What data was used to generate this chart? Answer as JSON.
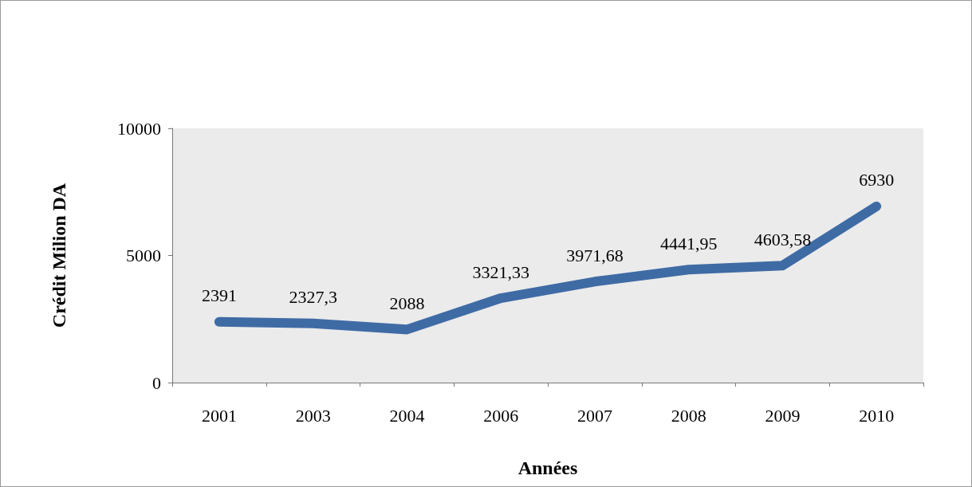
{
  "chart_data": {
    "type": "line",
    "xlabel": "Années",
    "ylabel": "Crédit Milion DA",
    "categories": [
      "2001",
      "2003",
      "2004",
      "2006",
      "2007",
      "2008",
      "2009",
      "2010"
    ],
    "series": [
      {
        "color": "#3f6ba5",
        "values": [
          2391,
          2327.3,
          2088,
          3321.33,
          3971.68,
          4441.95,
          4603.58,
          6930
        ],
        "value_labels": [
          "2391",
          "2327,3",
          "2088",
          "3321,33",
          "3971,68",
          "4441,95",
          "4603,58",
          "6930"
        ]
      }
    ],
    "ylim": [
      0,
      10000
    ],
    "yticks": [
      0,
      5000,
      10000
    ],
    "grid": false
  }
}
